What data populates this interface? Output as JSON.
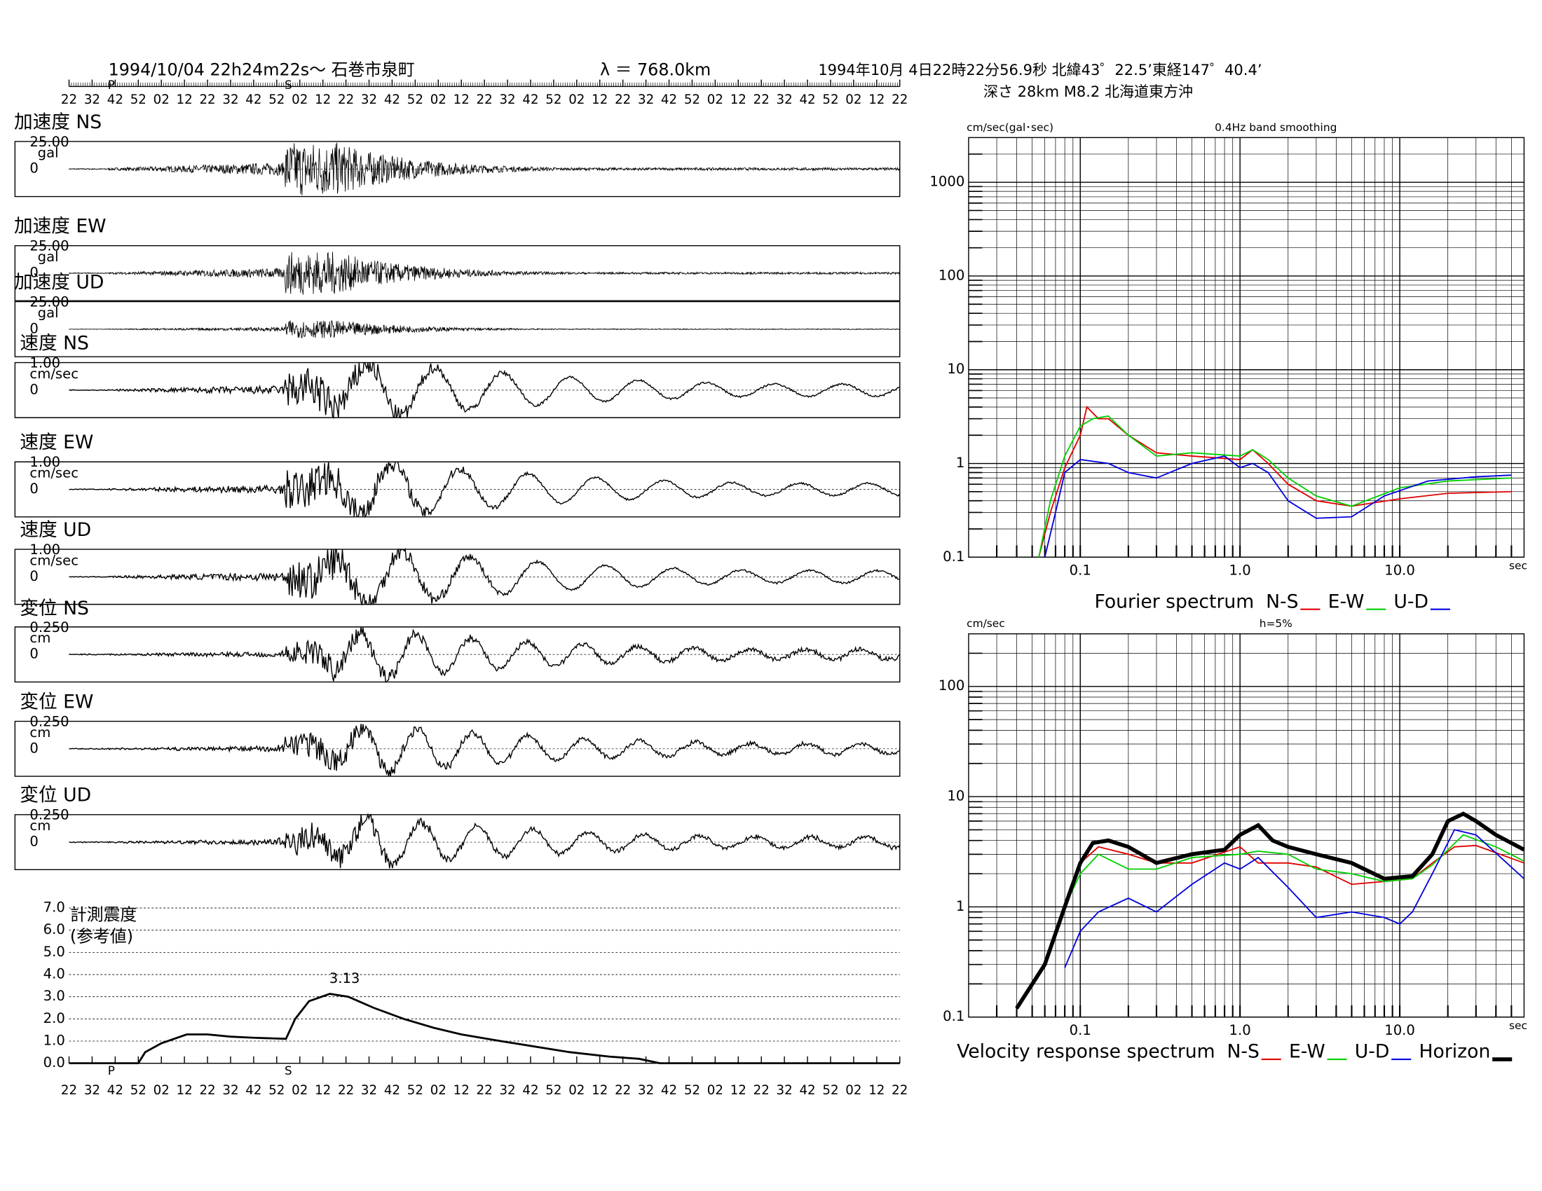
{
  "header": {
    "station": "1994/10/04  22h24m22s～  石巻市泉町",
    "distance": "λ ＝ 768.0km",
    "origin": "1994年10月 4日22時22分56.9秒 北緯43゜22.5’東経147゜40.4’",
    "source": "深さ 28km M8.2 北海道東方沖"
  },
  "time_labels": [
    "22",
    "32",
    "42",
    "52",
    "02",
    "12",
    "22",
    "32",
    "42",
    "52",
    "02",
    "12",
    "22",
    "32",
    "42",
    "52",
    "02",
    "12",
    "22",
    "32",
    "42",
    "52",
    "02",
    "12",
    "22",
    "32",
    "42",
    "52",
    "02",
    "12",
    "22",
    "32",
    "42",
    "52",
    "02",
    "12",
    "22"
  ],
  "phase_marks": [
    "P",
    "S"
  ],
  "traces": [
    {
      "label": "加速度 NS",
      "scale": "25.00",
      "unit": "gal",
      "zero": "0"
    },
    {
      "label": "加速度 EW",
      "scale": "25.00",
      "unit": "gal",
      "zero": "0"
    },
    {
      "label": "加速度 UD",
      "scale": "25.00",
      "unit": "gal",
      "zero": "0"
    },
    {
      "label": "速度 NS",
      "scale": "1.00",
      "unit": "cm/sec",
      "zero": "0"
    },
    {
      "label": "速度 EW",
      "scale": "1.00",
      "unit": "cm/sec",
      "zero": "0"
    },
    {
      "label": "速度 UD",
      "scale": "1.00",
      "unit": "cm/sec",
      "zero": "0"
    },
    {
      "label": "変位 NS",
      "scale": "0.250",
      "unit": "cm",
      "zero": "0"
    },
    {
      "label": "変位 EW",
      "scale": "0.250",
      "unit": "cm",
      "zero": "0"
    },
    {
      "label": "変位 UD",
      "scale": "0.250",
      "unit": "cm",
      "zero": "0"
    }
  ],
  "intensity": {
    "type": "line",
    "title": "計測震度",
    "subtitle": "(参考値)",
    "peak_label": "3.13",
    "xlim": [
      0,
      360
    ],
    "ylim": [
      0,
      7
    ],
    "yticks": [
      {
        "value": 0,
        "label": "0.0"
      },
      {
        "value": 1,
        "label": "1.0"
      },
      {
        "value": 2,
        "label": "2.0"
      },
      {
        "value": 3,
        "label": "3.0"
      },
      {
        "value": 4,
        "label": "4.0"
      },
      {
        "value": 5,
        "label": "5.0"
      },
      {
        "value": 6,
        "label": "6.0"
      },
      {
        "value": 7,
        "label": "7.0"
      }
    ],
    "x": [
      0,
      30,
      33,
      40,
      51,
      60,
      70,
      80,
      94,
      98,
      104,
      113,
      121,
      132,
      145,
      158,
      170,
      187,
      205,
      217,
      234,
      247,
      256,
      360
    ],
    "values": [
      0,
      0,
      0.5,
      0.9,
      1.3,
      1.3,
      1.2,
      1.15,
      1.1,
      2.0,
      2.8,
      3.13,
      3.0,
      2.5,
      2.0,
      1.6,
      1.3,
      1.0,
      0.7,
      0.5,
      0.3,
      0.2,
      0,
      0
    ]
  },
  "fourier": {
    "type": "line",
    "log": true,
    "unit_y": "cm/sec(gal･sec)",
    "title": "0.4Hz band smoothing",
    "unit_x": "sec",
    "legend": "Fourier spectrum",
    "xlim": [
      0.02,
      60
    ],
    "ylim": [
      0.1,
      3000
    ],
    "xticks": [
      {
        "value": 0.1,
        "label": "0.1"
      },
      {
        "value": 1,
        "label": "1.0"
      },
      {
        "value": 10,
        "label": "10.0"
      }
    ],
    "yticks": [
      0.1,
      1,
      10,
      100,
      1000
    ],
    "series": [
      {
        "name": "N-S",
        "color": "#e00000",
        "x": [
          0.055,
          0.065,
          0.08,
          0.1,
          0.11,
          0.13,
          0.15,
          0.2,
          0.3,
          0.5,
          1,
          1.2,
          1.5,
          2,
          3,
          5,
          10,
          20,
          50
        ],
        "values": [
          0.1,
          0.3,
          0.9,
          2,
          4,
          3,
          3,
          2,
          1.3,
          1.2,
          1.1,
          1.4,
          1,
          0.6,
          0.4,
          0.35,
          0.42,
          0.48,
          0.5
        ]
      },
      {
        "name": "E-W",
        "color": "#00d000",
        "x": [
          0.055,
          0.065,
          0.08,
          0.1,
          0.12,
          0.15,
          0.2,
          0.3,
          0.5,
          1,
          1.2,
          1.5,
          2,
          3,
          5,
          10,
          20,
          50
        ],
        "values": [
          0.1,
          0.4,
          1.2,
          2.5,
          3,
          3.2,
          2,
          1.2,
          1.3,
          1.2,
          1.4,
          1.1,
          0.7,
          0.45,
          0.35,
          0.55,
          0.65,
          0.7
        ]
      },
      {
        "name": "U-D",
        "color": "#0000e0",
        "x": [
          0.06,
          0.07,
          0.08,
          0.1,
          0.15,
          0.2,
          0.3,
          0.5,
          0.8,
          1,
          1.2,
          1.5,
          2,
          3,
          5,
          8,
          15,
          30,
          50
        ],
        "values": [
          0.1,
          0.3,
          0.8,
          1.1,
          1,
          0.8,
          0.7,
          1,
          1.2,
          0.9,
          1,
          0.8,
          0.4,
          0.26,
          0.27,
          0.45,
          0.65,
          0.72,
          0.75
        ]
      }
    ]
  },
  "response": {
    "type": "line",
    "log": true,
    "unit_y": "cm/sec",
    "title": "h=5%",
    "unit_x": "sec",
    "legend": "Velocity response spectrum",
    "xlim": [
      0.02,
      60
    ],
    "ylim": [
      0.1,
      300
    ],
    "xticks": [
      {
        "value": 0.1,
        "label": "0.1"
      },
      {
        "value": 1,
        "label": "1.0"
      },
      {
        "value": 10,
        "label": "10.0"
      }
    ],
    "yticks": [
      0.1,
      1,
      10,
      100
    ],
    "series": [
      {
        "name": "N-S",
        "color": "#e00000",
        "x": [
          0.08,
          0.1,
          0.13,
          0.2,
          0.3,
          0.5,
          1,
          1.3,
          2,
          3,
          5,
          8,
          12,
          16,
          22,
          30,
          60
        ],
        "values": [
          1,
          2.5,
          3.5,
          3,
          2.5,
          2.5,
          3.5,
          2.5,
          2.5,
          2.3,
          1.6,
          1.7,
          1.8,
          2.5,
          3.5,
          3.6,
          2.5
        ]
      },
      {
        "name": "E-W",
        "color": "#00d000",
        "x": [
          0.08,
          0.1,
          0.13,
          0.2,
          0.3,
          0.5,
          1,
          1.3,
          2,
          3,
          5,
          8,
          12,
          16,
          25,
          40,
          60
        ],
        "values": [
          1,
          2,
          3,
          2.2,
          2.2,
          2.8,
          3,
          3.2,
          3,
          2.2,
          2,
          1.7,
          1.8,
          2.4,
          4.5,
          3.5,
          2.6
        ]
      },
      {
        "name": "U-D",
        "color": "#0000e0",
        "x": [
          0.08,
          0.1,
          0.13,
          0.2,
          0.3,
          0.5,
          0.8,
          1,
          1.3,
          2,
          3,
          5,
          8,
          10,
          12,
          16,
          22,
          30,
          60
        ],
        "values": [
          0.28,
          0.6,
          0.9,
          1.2,
          0.9,
          1.6,
          2.5,
          2.2,
          2.8,
          1.5,
          0.8,
          0.9,
          0.8,
          0.7,
          0.9,
          2,
          5,
          4.5,
          1.8
        ]
      },
      {
        "name": "Horizon",
        "color": "#000000",
        "width": 4,
        "x": [
          0.04,
          0.06,
          0.08,
          0.1,
          0.12,
          0.15,
          0.2,
          0.3,
          0.5,
          0.8,
          1,
          1.3,
          1.6,
          2,
          3,
          5,
          8,
          12,
          16,
          20,
          25,
          30,
          40,
          60
        ],
        "values": [
          0.12,
          0.3,
          1,
          2.5,
          3.8,
          4,
          3.5,
          2.5,
          3,
          3.3,
          4.5,
          5.5,
          4,
          3.5,
          3,
          2.5,
          1.8,
          1.9,
          3,
          6,
          7,
          6,
          4.5,
          3.3
        ]
      }
    ]
  }
}
